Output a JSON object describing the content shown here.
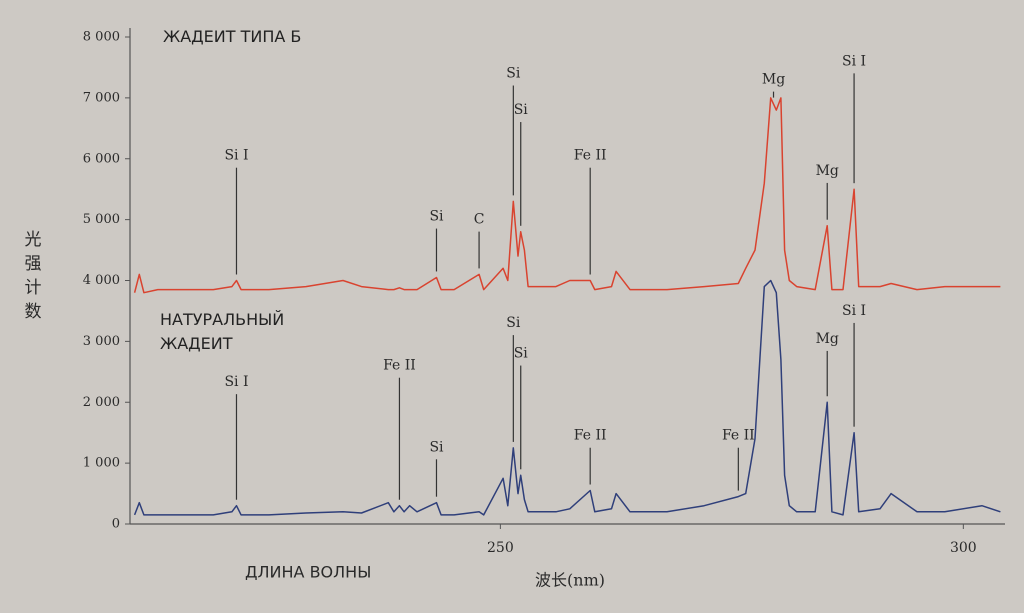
{
  "chart_data": {
    "type": "line",
    "x_label": "波长(nm)",
    "y_label": "光强计数",
    "caption": "ДЛИНА ВОЛНЫ",
    "xlim": [
      210,
      304.5
    ],
    "xticks": [
      250,
      300
    ],
    "ylim": [
      0,
      8000
    ],
    "yticks": [
      0,
      {
        "value": 1000,
        "label": "1 000"
      },
      {
        "value": 2000,
        "label": "2 000"
      },
      {
        "value": 3000,
        "label": "3 000"
      },
      {
        "value": 4000,
        "label": "4 000"
      },
      {
        "value": 5000,
        "label": "5 000"
      },
      {
        "value": 6000,
        "label": "6 000"
      },
      {
        "value": 7000,
        "label": "7 000"
      },
      {
        "value": 8000,
        "label": "8 000"
      }
    ],
    "x": [
      210.5,
      211,
      211.5,
      213,
      216,
      219,
      221,
      221.5,
      222,
      225,
      229,
      233,
      235,
      237.9,
      238.5,
      239.1,
      239.6,
      240.2,
      241,
      243.1,
      243.6,
      245,
      247.7,
      248.2,
      250.3,
      250.8,
      251.4,
      251.9,
      252.2,
      252.6,
      253,
      254,
      256,
      257.5,
      259.7,
      260.2,
      262,
      262.5,
      264,
      268,
      272,
      275.7,
      276.5,
      277.5,
      278.5,
      279.2,
      279.8,
      280.3,
      280.7,
      281.2,
      282,
      284,
      285.3,
      285.8,
      287,
      288.2,
      288.7,
      291,
      292.2,
      295,
      298,
      302,
      304
    ],
    "series": [
      {
        "name": "ЖАДЕИТ ТИПА Б",
        "color": "#d9432f",
        "values": [
          3800,
          4100,
          3800,
          3850,
          3850,
          3850,
          3900,
          4000,
          3850,
          3850,
          3900,
          4000,
          3900,
          3850,
          3850,
          3880,
          3850,
          3850,
          3850,
          4050,
          3850,
          3850,
          4100,
          3850,
          4200,
          4000,
          5300,
          4400,
          4800,
          4500,
          3900,
          3900,
          3900,
          4000,
          4000,
          3850,
          3900,
          4150,
          3850,
          3850,
          3900,
          3950,
          4200,
          4500,
          5600,
          7000,
          6800,
          7000,
          4500,
          4000,
          3900,
          3850,
          4900,
          3850,
          3850,
          5500,
          3900,
          3900,
          3950,
          3850,
          3900,
          3900,
          3900
        ],
        "annotations": [
          {
            "text": "Si I",
            "x": 221.5,
            "y": 6050
          },
          {
            "text": "Si",
            "x": 243.1,
            "y": 5050
          },
          {
            "text": "C",
            "x": 247.7,
            "y": 5000
          },
          {
            "text": "Si",
            "x": 251.4,
            "y": 7400
          },
          {
            "text": "Si",
            "x": 252.2,
            "y": 6800
          },
          {
            "text": "Fe II",
            "x": 259.7,
            "y": 6050
          },
          {
            "text": "Mg",
            "x": 279.5,
            "y": 7300
          },
          {
            "text": "Mg",
            "x": 285.3,
            "y": 5800
          },
          {
            "text": "Si I",
            "x": 288.2,
            "y": 7600
          }
        ]
      },
      {
        "name": "НАТУРАЛЬНЫЙ ЖАДЕИТ",
        "color": "#2f3f7a",
        "values": [
          150,
          350,
          150,
          150,
          150,
          150,
          200,
          300,
          150,
          150,
          180,
          200,
          180,
          350,
          200,
          300,
          200,
          300,
          200,
          350,
          150,
          150,
          200,
          150,
          750,
          300,
          1250,
          500,
          800,
          400,
          200,
          200,
          200,
          250,
          550,
          200,
          250,
          500,
          200,
          200,
          300,
          450,
          500,
          1400,
          3900,
          4000,
          3800,
          2700,
          800,
          300,
          200,
          200,
          2000,
          200,
          150,
          1500,
          200,
          250,
          500,
          200,
          200,
          300,
          200
        ],
        "annotations": [
          {
            "text": "Si I",
            "x": 221.5,
            "y": 2330
          },
          {
            "text": "Fe II",
            "x": 239.1,
            "y": 2600
          },
          {
            "text": "Si",
            "x": 243.1,
            "y": 1260
          },
          {
            "text": "Si",
            "x": 251.4,
            "y": 3300
          },
          {
            "text": "Si",
            "x": 252.2,
            "y": 2800
          },
          {
            "text": "Fe II",
            "x": 259.7,
            "y": 1450
          },
          {
            "text": "Fe II",
            "x": 275.7,
            "y": 1450
          },
          {
            "text": "Mg",
            "x": 285.3,
            "y": 3040
          },
          {
            "text": "Si I",
            "x": 288.2,
            "y": 3500
          }
        ]
      }
    ]
  }
}
